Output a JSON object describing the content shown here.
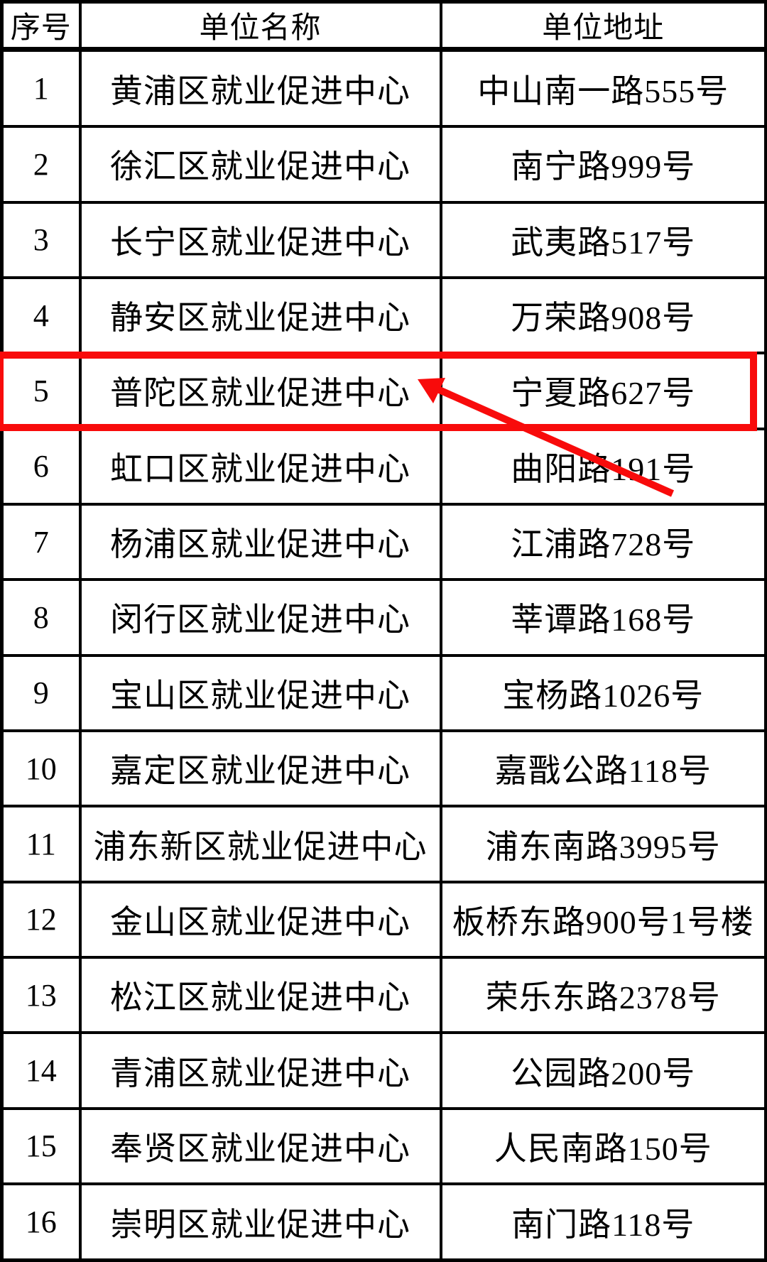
{
  "table": {
    "columns": [
      {
        "key": "no",
        "label": "序号"
      },
      {
        "key": "name",
        "label": "单位名称"
      },
      {
        "key": "address",
        "label": "单位地址"
      }
    ],
    "rows": [
      {
        "no": "1",
        "name": "黄浦区就业促进中心",
        "address": "中山南一路555号"
      },
      {
        "no": "2",
        "name": "徐汇区就业促进中心",
        "address": "南宁路999号"
      },
      {
        "no": "3",
        "name": "长宁区就业促进中心",
        "address": "武夷路517号"
      },
      {
        "no": "4",
        "name": "静安区就业促进中心",
        "address": "万荣路908号"
      },
      {
        "no": "5",
        "name": "普陀区就业促进中心",
        "address": "宁夏路627号"
      },
      {
        "no": "6",
        "name": "虹口区就业促进中心",
        "address": "曲阳路191号"
      },
      {
        "no": "7",
        "name": "杨浦区就业促进中心",
        "address": "江浦路728号"
      },
      {
        "no": "8",
        "name": "闵行区就业促进中心",
        "address": "莘谭路168号"
      },
      {
        "no": "9",
        "name": "宝山区就业促进中心",
        "address": "宝杨路1026号"
      },
      {
        "no": "10",
        "name": "嘉定区就业促进中心",
        "address": "嘉戬公路118号"
      },
      {
        "no": "11",
        "name": "浦东新区就业促进中心",
        "address": "浦东南路3995号"
      },
      {
        "no": "12",
        "name": "金山区就业促进中心",
        "address": "板桥东路900号1号楼"
      },
      {
        "no": "13",
        "name": "松江区就业促进中心",
        "address": "荣乐东路2378号"
      },
      {
        "no": "14",
        "name": "青浦区就业促进中心",
        "address": "公园路200号"
      },
      {
        "no": "15",
        "name": "奉贤区就业促进中心",
        "address": "人民南路150号"
      },
      {
        "no": "16",
        "name": "崇明区就业促进中心",
        "address": "南门路118号"
      }
    ]
  },
  "annotation": {
    "highlighted_row_number": "5",
    "highlighted_row_index": 4,
    "highlight_color": "#f80b0b",
    "border_color": "#000000",
    "background_color": "#ffffff"
  }
}
